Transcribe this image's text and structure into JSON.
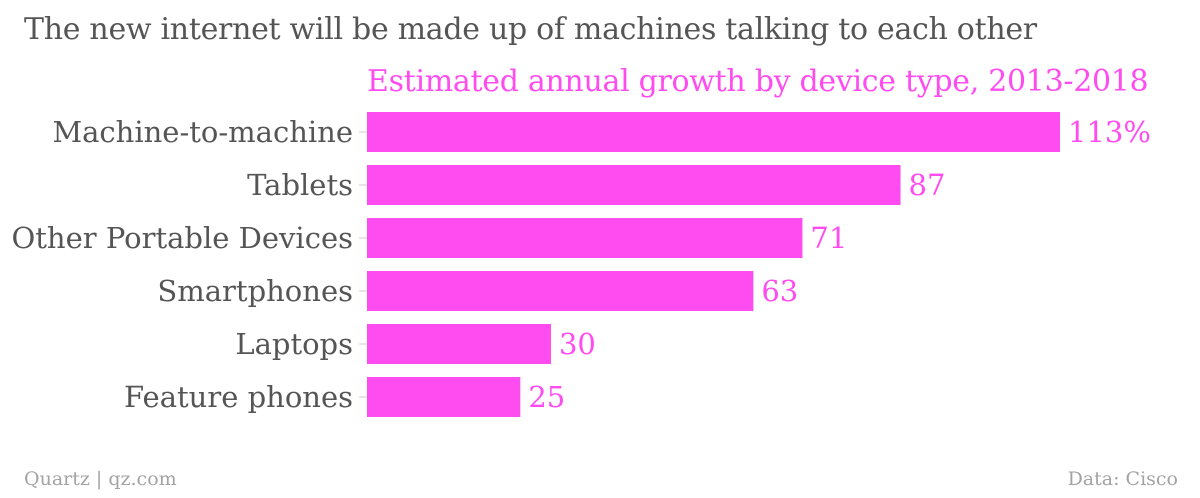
{
  "header": {
    "title": "The new internet will be made up of machines talking to each other",
    "subtitle": "Estimated annual growth by device type, 2013-2018"
  },
  "footer": {
    "source_left": "Quartz | qz.com",
    "source_right": "Data: Cisco"
  },
  "colors": {
    "bar": "#ff4cf1",
    "label": "#555555",
    "value_label": "#ff4cf1",
    "tick": "#cccccc"
  },
  "chart_data": {
    "type": "bar",
    "orientation": "horizontal",
    "title": "The new internet will be made up of machines talking to each other",
    "subtitle": "Estimated annual growth by device type, 2013-2018",
    "categories": [
      "Machine-to-machine",
      "Tablets",
      "Other Portable Devices",
      "Smartphones",
      "Laptops",
      "Feature phones"
    ],
    "values": [
      113,
      87,
      71,
      63,
      30,
      25
    ],
    "value_labels": [
      "113%",
      "87",
      "71",
      "63",
      "30",
      "25"
    ],
    "xlim": [
      0,
      113
    ],
    "grid": false,
    "legend": "none"
  }
}
